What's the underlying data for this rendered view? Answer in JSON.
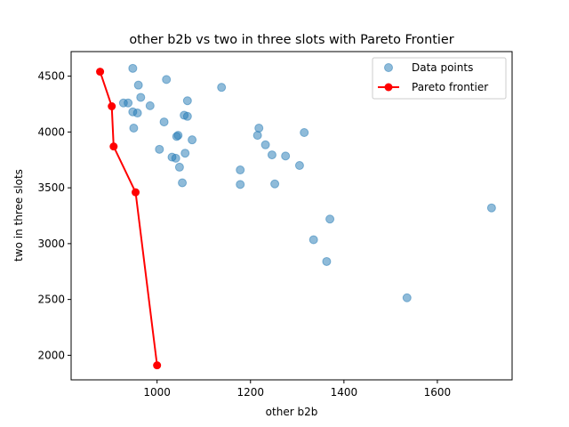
{
  "chart_data": {
    "type": "scatter",
    "title": "other b2b vs two in three slots with Pareto Frontier",
    "xlabel": "other b2b",
    "ylabel": "two in three slots",
    "xlim": [
      816,
      1760
    ],
    "ylim": [
      1780,
      4720
    ],
    "xticks": [
      1000,
      1200,
      1400,
      1600
    ],
    "yticks": [
      2000,
      2500,
      3000,
      3500,
      4000,
      4500
    ],
    "grid": false,
    "legend_position": "top-right",
    "series": [
      {
        "name": "Data points",
        "kind": "scatter",
        "color": "#1f77b4",
        "points": [
          [
            948,
            4570
          ],
          [
            1020,
            4470
          ],
          [
            960,
            4420
          ],
          [
            965,
            4310
          ],
          [
            1138,
            4400
          ],
          [
            928,
            4260
          ],
          [
            938,
            4260
          ],
          [
            948,
            4180
          ],
          [
            958,
            4170
          ],
          [
            985,
            4235
          ],
          [
            1065,
            4280
          ],
          [
            1015,
            4090
          ],
          [
            1058,
            4150
          ],
          [
            1065,
            4140
          ],
          [
            950,
            4035
          ],
          [
            1042,
            3960
          ],
          [
            1045,
            3970
          ],
          [
            1075,
            3930
          ],
          [
            1005,
            3845
          ],
          [
            1060,
            3810
          ],
          [
            1032,
            3775
          ],
          [
            1040,
            3765
          ],
          [
            1048,
            3685
          ],
          [
            1054,
            3545
          ],
          [
            1178,
            3660
          ],
          [
            1178,
            3530
          ],
          [
            1215,
            3970
          ],
          [
            1218,
            4035
          ],
          [
            1232,
            3885
          ],
          [
            1246,
            3795
          ],
          [
            1275,
            3785
          ],
          [
            1305,
            3700
          ],
          [
            1315,
            3995
          ],
          [
            1252,
            3535
          ],
          [
            1370,
            3220
          ],
          [
            1335,
            3035
          ],
          [
            1363,
            2840
          ],
          [
            1535,
            2515
          ],
          [
            1716,
            3320
          ]
        ]
      },
      {
        "name": "Pareto frontier",
        "kind": "line",
        "color": "#ff0000",
        "points": [
          [
            878,
            4540
          ],
          [
            903,
            4230
          ],
          [
            907,
            3870
          ],
          [
            954,
            3460
          ],
          [
            1000,
            1910
          ]
        ]
      }
    ]
  }
}
